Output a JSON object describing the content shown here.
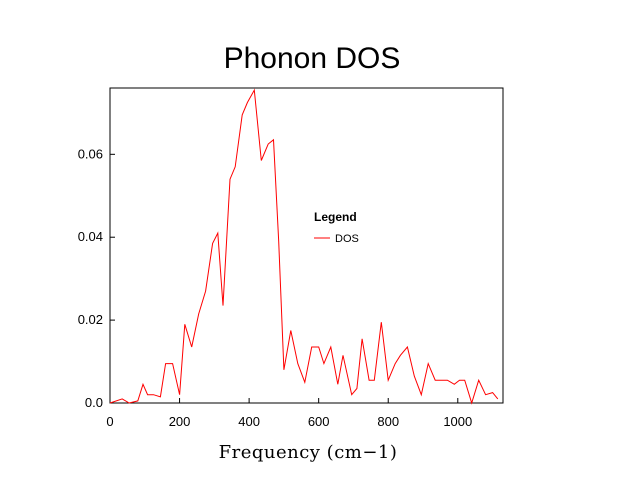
{
  "chart_data": {
    "type": "line",
    "title": "Phonon DOS",
    "xlabel": "Frequency (cm−1)",
    "ylabel": "",
    "xlim": [
      0,
      1130
    ],
    "ylim": [
      0,
      0.076
    ],
    "xticks": [
      0,
      200,
      400,
      600,
      800,
      1000
    ],
    "xtick_labels": [
      "0",
      "200",
      "400",
      "600",
      "800",
      "1000"
    ],
    "yticks": [
      0.0,
      0.02,
      0.04,
      0.06
    ],
    "ytick_labels": [
      "0.0",
      "0.02",
      "0.04",
      "0.06"
    ],
    "grid": false,
    "legend": {
      "title": "Legend",
      "placement": "center-right"
    },
    "series": [
      {
        "name": "DOS",
        "color": "#ff0000",
        "x": [
          0,
          35,
          55,
          80,
          95,
          108,
          125,
          145,
          160,
          180,
          200,
          215,
          235,
          255,
          275,
          295,
          310,
          325,
          345,
          360,
          380,
          395,
          415,
          435,
          455,
          470,
          485,
          500,
          520,
          540,
          560,
          580,
          600,
          615,
          635,
          655,
          670,
          695,
          710,
          725,
          745,
          760,
          780,
          800,
          820,
          835,
          855,
          875,
          895,
          915,
          935,
          955,
          970,
          990,
          1005,
          1020,
          1040,
          1060,
          1080,
          1100,
          1115
        ],
        "y": [
          0.0,
          0.001,
          0.0,
          0.0005,
          0.0045,
          0.002,
          0.002,
          0.0015,
          0.0095,
          0.0095,
          0.002,
          0.019,
          0.0135,
          0.0215,
          0.027,
          0.0385,
          0.041,
          0.0235,
          0.054,
          0.057,
          0.0695,
          0.0725,
          0.0755,
          0.0585,
          0.0625,
          0.0635,
          0.039,
          0.008,
          0.0175,
          0.0095,
          0.005,
          0.0135,
          0.0135,
          0.0095,
          0.0135,
          0.0045,
          0.0115,
          0.002,
          0.0035,
          0.0155,
          0.0055,
          0.0055,
          0.0195,
          0.0055,
          0.0095,
          0.0115,
          0.0135,
          0.0065,
          0.002,
          0.0095,
          0.0055,
          0.0055,
          0.0055,
          0.0045,
          0.0055,
          0.0055,
          0.0,
          0.0055,
          0.002,
          0.0025,
          0.001
        ]
      }
    ]
  }
}
